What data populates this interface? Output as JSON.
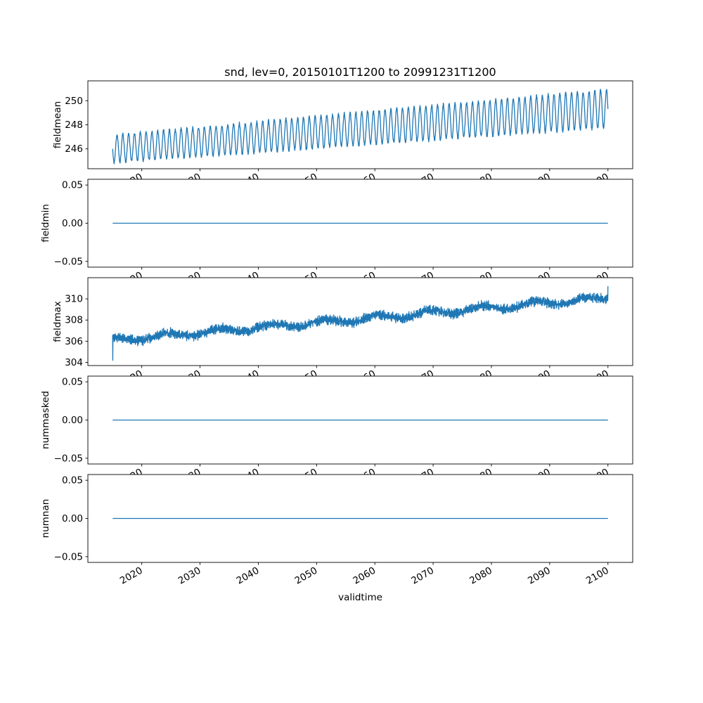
{
  "figure": {
    "title": "snd, lev=0, 20150101T1200 to 20991231T1200",
    "xlabel": "validtime",
    "line_color": "#1f77b4",
    "axis_color": "#000000",
    "background": "#ffffff",
    "x": {
      "lim": [
        2010.75,
        2104.25
      ],
      "ticks": [
        2020,
        2030,
        2040,
        2050,
        2060,
        2070,
        2080,
        2090,
        2100
      ],
      "tick_labels": [
        "2020",
        "2030",
        "2040",
        "2050",
        "2060",
        "2070",
        "2080",
        "2090",
        "2100"
      ],
      "tick_rotation": -30,
      "data_start": 2015.0,
      "data_end": 2100.0
    }
  },
  "chart_data": [
    {
      "type": "line",
      "ylabel": "fieldmean",
      "ylim": [
        244.35,
        251.65
      ],
      "yticks": [
        246,
        248,
        250
      ],
      "ytick_labels": [
        "246",
        "248",
        "250"
      ],
      "grid": false,
      "model": {
        "kind": "seasonal_trend",
        "mean_start": 246.0,
        "mean_end": 249.35,
        "amplitude_start": 1.15,
        "amplitude_end": 1.6,
        "cycles_per_year": 1,
        "phase": 3.1416,
        "noise": 0.12,
        "samples_per_year": 24,
        "seed": 11
      }
    },
    {
      "type": "line",
      "ylabel": "fieldmin",
      "ylim": [
        -0.0575,
        0.0575
      ],
      "yticks": [
        -0.05,
        0,
        0.05
      ],
      "ytick_labels": [
        "−0.05",
        "0.00",
        "0.05"
      ],
      "grid": false,
      "model": {
        "kind": "constant",
        "value": 0
      }
    },
    {
      "type": "line",
      "ylabel": "fieldmax",
      "ylim": [
        303.7,
        312.0
      ],
      "yticks": [
        304,
        306,
        308,
        310
      ],
      "ytick_labels": [
        "304",
        "306",
        "308",
        "310"
      ],
      "grid": false,
      "model": {
        "kind": "noisy_trend",
        "start": 306.1,
        "end": 310.1,
        "noise": 0.34,
        "wander_amp": 0.25,
        "wander_period": 9,
        "spike_value": 304.2,
        "end_spike_value": 311.2,
        "samples_per_year": 40,
        "seed": 5
      }
    },
    {
      "type": "line",
      "ylabel": "nummasked",
      "ylim": [
        -0.0575,
        0.0575
      ],
      "yticks": [
        -0.05,
        0,
        0.05
      ],
      "ytick_labels": [
        "−0.05",
        "0.00",
        "0.05"
      ],
      "grid": false,
      "model": {
        "kind": "constant",
        "value": 0
      }
    },
    {
      "type": "line",
      "ylabel": "numnan",
      "ylim": [
        -0.0575,
        0.0575
      ],
      "yticks": [
        -0.05,
        0,
        0.05
      ],
      "ytick_labels": [
        "−0.05",
        "0.00",
        "0.05"
      ],
      "grid": false,
      "model": {
        "kind": "constant",
        "value": 0
      }
    }
  ]
}
